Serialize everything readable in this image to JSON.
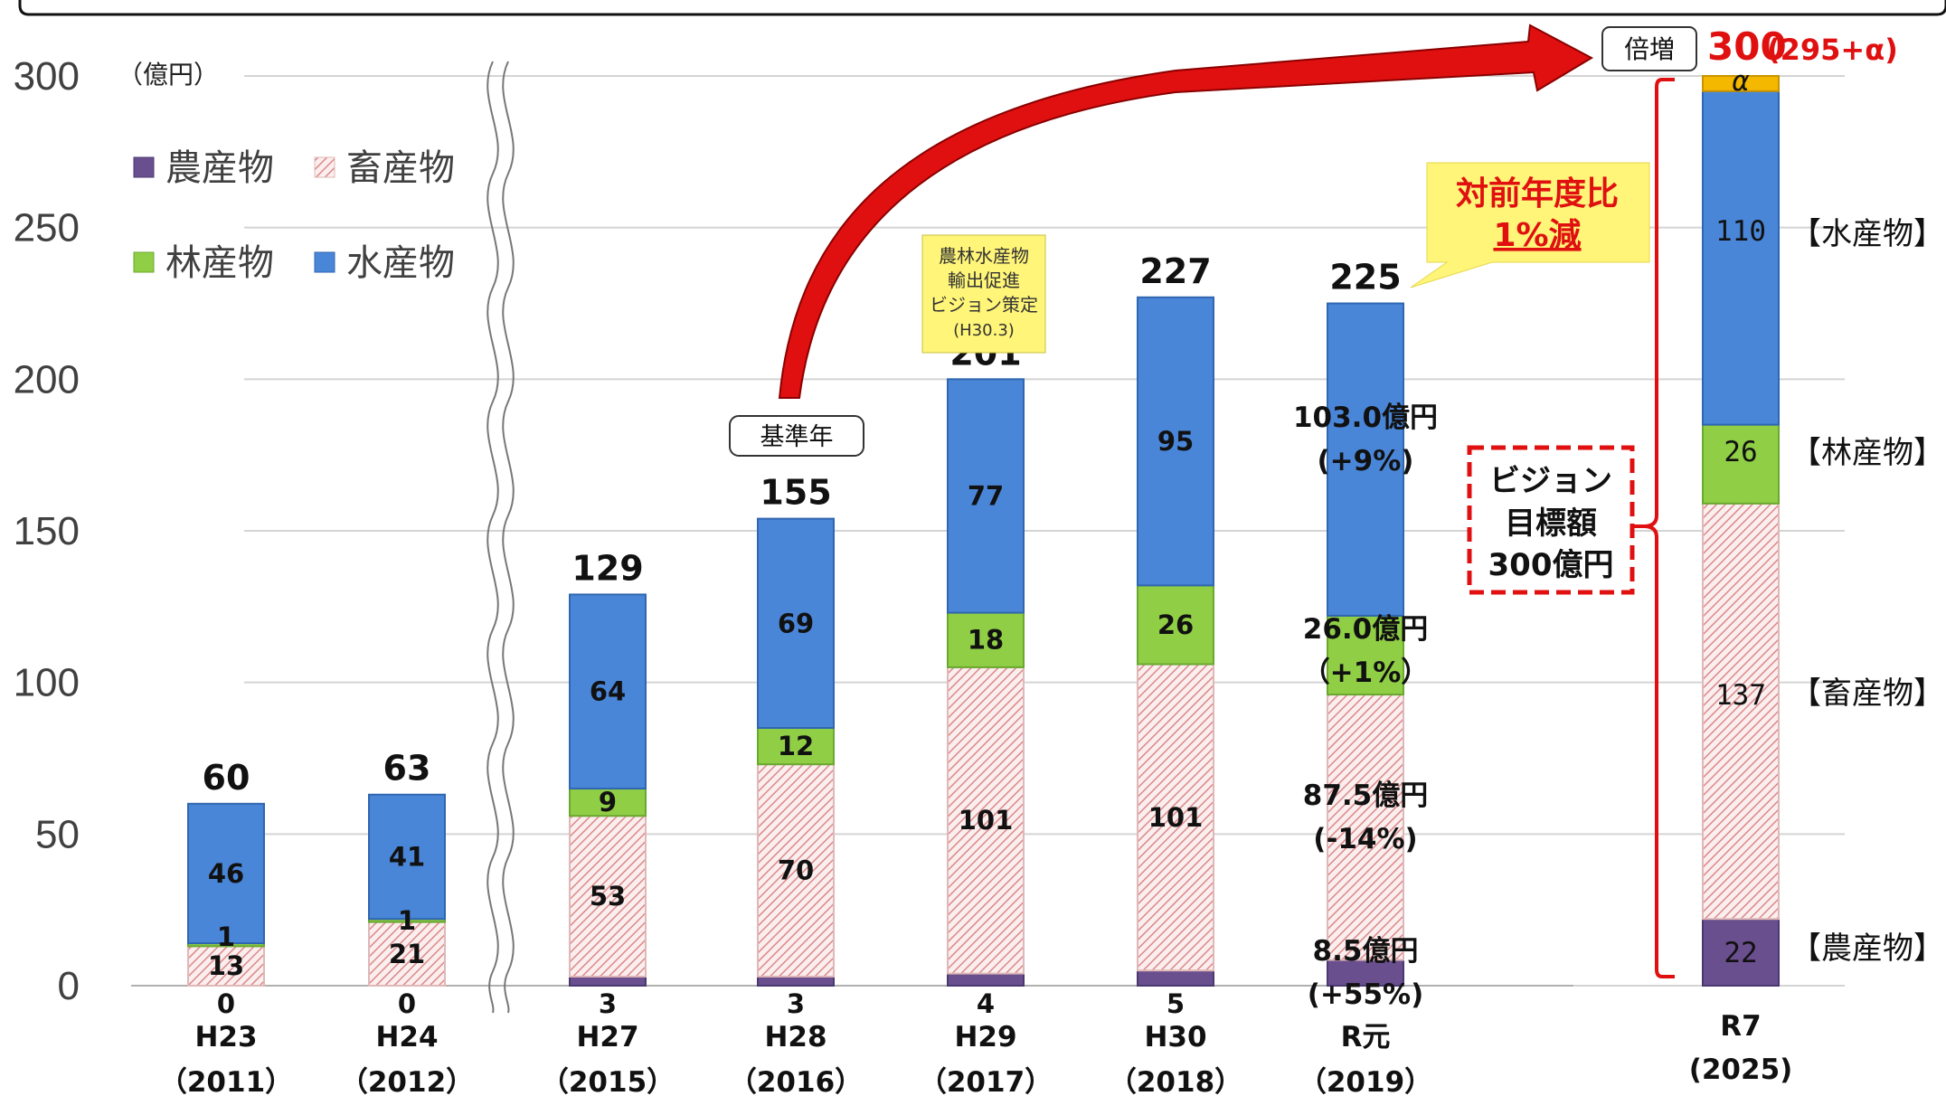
{
  "chart_data": {
    "type": "bar",
    "unit": "（億円）",
    "ylim": [
      0,
      300
    ],
    "yticks": [
      "0",
      "50",
      "100",
      "150",
      "200",
      "250",
      "300"
    ],
    "grid": true,
    "legend": [
      {
        "name": "農産物",
        "color": "#6a4f8f"
      },
      {
        "name": "畜産物",
        "color": "#e8a8a8"
      },
      {
        "name": "林産物",
        "color": "#8fce45"
      },
      {
        "name": "水産物",
        "color": "#4a86d8"
      }
    ],
    "categories": [
      {
        "label": "H23",
        "year": "（2011）",
        "total": "60",
        "values": [
          0,
          13,
          1,
          46
        ],
        "labels": [
          "0",
          "13",
          "1",
          "46"
        ]
      },
      {
        "label": "H24",
        "year": "（2012）",
        "total": "63",
        "values": [
          0,
          21,
          1,
          41
        ],
        "labels": [
          "0",
          "21",
          "1",
          "41"
        ]
      },
      {
        "label": "H27",
        "year": "（2015）",
        "total": "129",
        "values": [
          3,
          53,
          9,
          64
        ],
        "labels": [
          "3",
          "53",
          "9",
          "64"
        ]
      },
      {
        "label": "H28",
        "year": "（2016）",
        "total": "155",
        "values": [
          3,
          70,
          12,
          69
        ],
        "labels": [
          "3",
          "70",
          "12",
          "69"
        ]
      },
      {
        "label": "H29",
        "year": "（2017）",
        "total": "201",
        "values": [
          4,
          101,
          18,
          77
        ],
        "labels": [
          "4",
          "101",
          "18",
          "77"
        ]
      },
      {
        "label": "H30",
        "year": "（2018）",
        "total": "227",
        "values": [
          5,
          101,
          26,
          95
        ],
        "labels": [
          "5",
          "101",
          "26",
          "95"
        ]
      },
      {
        "label": "R元",
        "year": "（2019）",
        "total": "225",
        "values": [
          8.5,
          87.5,
          26,
          103
        ],
        "labels": [
          "",
          "",
          "",
          ""
        ]
      }
    ],
    "r1_annotations": [
      {
        "line1": "8.5億円",
        "line2": "(+55%)"
      },
      {
        "line1": "87.5億円",
        "line2": "(-14%)"
      },
      {
        "line1": "26.0億円",
        "line2": "（+1%）"
      },
      {
        "line1": "103.0億円",
        "line2": "(+9%)"
      }
    ],
    "target": {
      "label": "R7",
      "year": "(2025)",
      "values": [
        22,
        137,
        26,
        110,
        5
      ],
      "labels": [
        "22",
        "137",
        "26",
        "110",
        "α"
      ],
      "category_labels": [
        "【農産物】",
        "【畜産物】",
        "【林産物】",
        "【水産物】"
      ],
      "total_main": "300",
      "total_sub": "(295+α)",
      "alpha_color": "#f5b800"
    }
  },
  "callouts": {
    "base_year": "基準年",
    "vision_note": [
      "農林水産物",
      "輸出促進",
      "ビジョン策定",
      "(H30.3)"
    ],
    "yoy_line1": "対前年度比",
    "yoy_line2": "1%減",
    "double": "倍増",
    "vision_target": [
      "ビジョン",
      "目標額",
      "300億円"
    ]
  }
}
